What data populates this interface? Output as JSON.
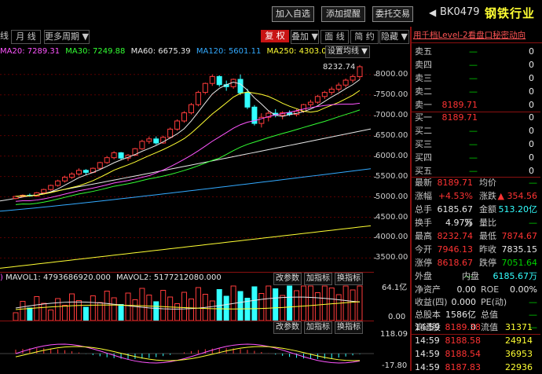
{
  "toolbar": {
    "btn_add_watch": "加入自选",
    "btn_add_alert": "添加提醒",
    "btn_commission": "委托交易",
    "nav_back_icon": "◀",
    "code": "BK0479",
    "name": "钢铁行业"
  },
  "chart_toolbar": {
    "tab_week": "线",
    "tab_month": "月 线",
    "tab_more": "更多周期 ▼",
    "btn_fuquan": "复 权",
    "btn_overlay": "叠加 ▼",
    "btn_area": "面 线",
    "btn_simple": "简 约",
    "btn_hide": "隐藏 ▼"
  },
  "ma_legend": {
    "ma20": "MA20: 7289.31",
    "ma30": "MA30: 7249.88",
    "ma60": "MA60: 6675.39",
    "ma120": "MA120: 5601.11",
    "ma250": "MA250: 4303.00",
    "settings_btn": "设置均线 ▼"
  },
  "price_axis": {
    "ticks": [
      "8000.00",
      "7500.00",
      "7000.00",
      "6500.00",
      "6000.00",
      "5500.00",
      "5000.00",
      "4500.00",
      "4000.00",
      "3500.00"
    ],
    "high_label": "8232.74"
  },
  "volume_panel": {
    "legend_vol": "MAVOL1: 4793686920.000",
    "legend_vol2": "MAVOL2: 5177212080.000",
    "btn_params": "改参数",
    "btn_add": "加指标",
    "btn_switch": "换指标",
    "axis_top": "64.1亿",
    "axis_bottom": "0.00"
  },
  "macd_panel": {
    "btn_params": "改参数",
    "btn_add": "加指标",
    "btn_switch": "换指标",
    "axis_top": "118.09",
    "axis_bottom": "-17.80"
  },
  "right_panel": {
    "header_link": "用千档Level-2看盘口秘密动向",
    "sell": [
      {
        "label": "卖五",
        "price": "—",
        "vol": "0"
      },
      {
        "label": "卖四",
        "price": "—",
        "vol": "0"
      },
      {
        "label": "卖三",
        "price": "—",
        "vol": "0"
      },
      {
        "label": "卖二",
        "price": "—",
        "vol": "0"
      },
      {
        "label": "卖一",
        "price": "8189.71",
        "vol": "0"
      }
    ],
    "buy": [
      {
        "label": "买一",
        "price": "8189.71",
        "vol": "0"
      },
      {
        "label": "买二",
        "price": "—",
        "vol": "0"
      },
      {
        "label": "买三",
        "price": "—",
        "vol": "0"
      },
      {
        "label": "买四",
        "price": "—",
        "vol": "0"
      },
      {
        "label": "买五",
        "price": "—",
        "vol": "0"
      }
    ],
    "stats": [
      {
        "l1": "最新",
        "v1": "8189.71",
        "c1": "red",
        "l2": "均价",
        "v2": "—",
        "c2": "grn"
      },
      {
        "l1": "涨幅",
        "v1": "+4.53%",
        "c1": "red",
        "l2": "涨跌",
        "v2": "▲ 354.56",
        "c2": "red"
      },
      {
        "l1": "总手",
        "v1": "6185.67万",
        "c1": "wht",
        "l2": "金额",
        "v2": "513.20亿",
        "c2": "cyn"
      },
      {
        "l1": "换手",
        "v1": "4.97%",
        "c1": "wht",
        "l2": "量比",
        "v2": "—",
        "c2": "grn"
      },
      {
        "l1": "最高",
        "v1": "8232.74",
        "c1": "red",
        "l2": "最低",
        "v2": "7874.67",
        "c2": "red"
      },
      {
        "l1": "今开",
        "v1": "7946.13",
        "c1": "red",
        "l2": "昨收",
        "v2": "7835.15",
        "c2": "wht"
      },
      {
        "l1": "涨停",
        "v1": "8618.67",
        "c1": "red",
        "l2": "跌停",
        "v2": "7051.64",
        "c2": "grn"
      }
    ],
    "outer_inner": {
      "l1": "外盘",
      "v1": "—",
      "l2": "内盘",
      "v2": "6185.67万"
    },
    "fund": [
      {
        "l1": "净资产",
        "v1": "0.00",
        "l2": "ROE",
        "v2": "0.00%"
      },
      {
        "l1": "收益(四)",
        "v1": "0.000",
        "l2": "PE(动)",
        "v2": "—"
      },
      {
        "l1": "总股本",
        "v1": "1586亿",
        "l2": "总值",
        "v2": "—"
      },
      {
        "l1": "流通股",
        "v1": "0",
        "l2": "流值",
        "v2": "—"
      }
    ],
    "ticks": [
      {
        "time": "14:59",
        "price": "8189.38",
        "vol": "31371"
      },
      {
        "time": "14:59",
        "price": "8188.58",
        "vol": "24914"
      },
      {
        "time": "14:59",
        "price": "8188.54",
        "vol": "36953"
      },
      {
        "time": "14:59",
        "price": "8187.83",
        "vol": "22936"
      }
    ]
  },
  "chart_data": {
    "type": "candlestick",
    "ylim": [
      3200,
      8400
    ],
    "candles": [
      [
        4960,
        5030,
        4940,
        5010
      ],
      [
        5010,
        5060,
        4990,
        5040
      ],
      [
        5040,
        5080,
        5000,
        5020
      ],
      [
        5020,
        5120,
        5010,
        5100
      ],
      [
        5100,
        5200,
        5080,
        5180
      ],
      [
        5180,
        5300,
        5150,
        5280
      ],
      [
        5280,
        5420,
        5250,
        5390
      ],
      [
        5390,
        5520,
        5350,
        5480
      ],
      [
        5480,
        5600,
        5440,
        5560
      ],
      [
        5560,
        5700,
        5520,
        5650
      ],
      [
        5650,
        5680,
        5540,
        5600
      ],
      [
        5600,
        5720,
        5580,
        5700
      ],
      [
        5700,
        5860,
        5680,
        5840
      ],
      [
        5840,
        6000,
        5810,
        5960
      ],
      [
        5960,
        6120,
        5920,
        6080
      ],
      [
        6080,
        6100,
        5900,
        5950
      ],
      [
        5950,
        6050,
        5880,
        6020
      ],
      [
        6020,
        6200,
        6000,
        6180
      ],
      [
        6180,
        6400,
        6150,
        6360
      ],
      [
        6360,
        6480,
        6300,
        6420
      ],
      [
        6420,
        6480,
        6280,
        6320
      ],
      [
        6320,
        6500,
        6300,
        6460
      ],
      [
        6460,
        6700,
        6430,
        6660
      ],
      [
        6660,
        6900,
        6620,
        6860
      ],
      [
        6860,
        7100,
        6820,
        7060
      ],
      [
        7060,
        7300,
        7020,
        7260
      ],
      [
        7260,
        7600,
        7220,
        7560
      ],
      [
        7560,
        7800,
        7520,
        7780
      ],
      [
        7780,
        8000,
        7720,
        7950
      ],
      [
        7950,
        7980,
        7700,
        7750
      ],
      [
        7750,
        7850,
        7600,
        7700
      ],
      [
        7700,
        7900,
        7650,
        7880
      ],
      [
        7880,
        8000,
        7500,
        7550
      ],
      [
        7550,
        7650,
        7150,
        7200
      ],
      [
        7200,
        7250,
        6750,
        6800
      ],
      [
        6800,
        7050,
        6700,
        6950
      ],
      [
        6950,
        7100,
        6850,
        7050
      ],
      [
        7050,
        7150,
        6950,
        7000
      ],
      [
        7000,
        7100,
        6900,
        7060
      ],
      [
        7060,
        7120,
        6980,
        7020
      ],
      [
        7020,
        7150,
        6970,
        7100
      ],
      [
        7100,
        7280,
        7060,
        7260
      ],
      [
        7260,
        7380,
        7200,
        7320
      ],
      [
        7320,
        7500,
        7280,
        7460
      ],
      [
        7460,
        7600,
        7400,
        7560
      ],
      [
        7560,
        7700,
        7500,
        7640
      ],
      [
        7640,
        7800,
        7580,
        7740
      ],
      [
        7740,
        7900,
        7680,
        7860
      ],
      [
        7860,
        8000,
        7800,
        7950
      ],
      [
        7946,
        8232,
        7874,
        8189
      ]
    ]
  }
}
